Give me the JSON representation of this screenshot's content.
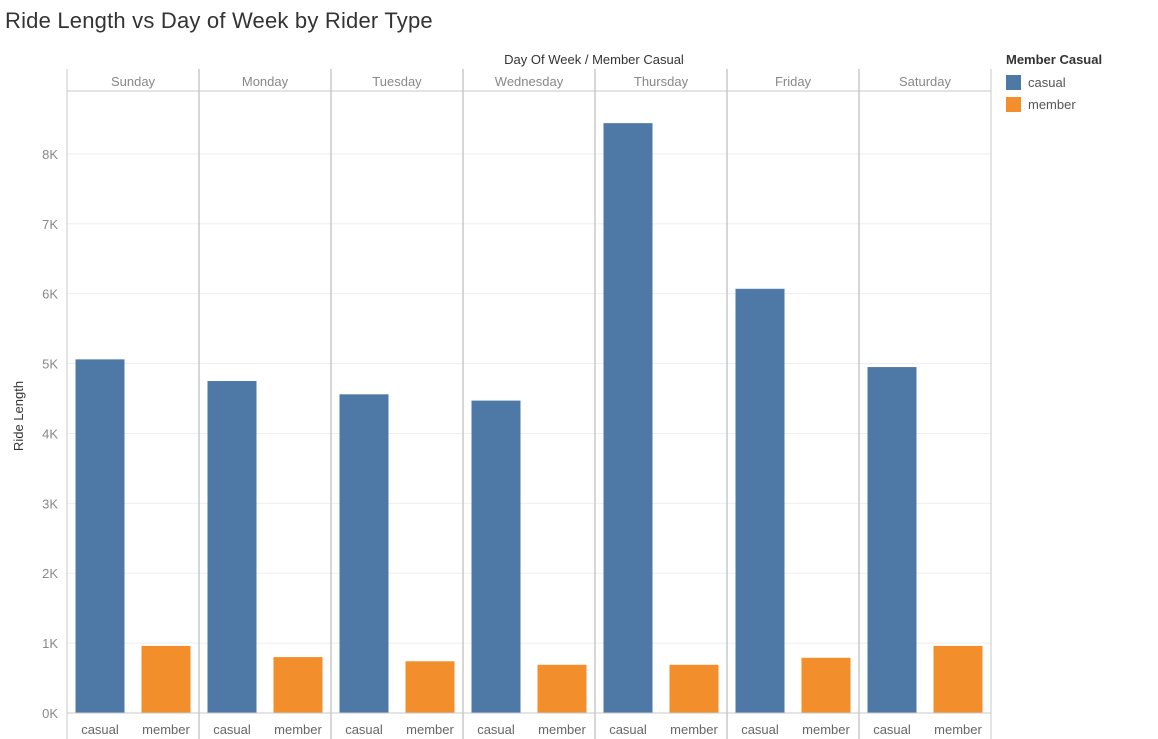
{
  "title": "Ride Length vs Day of Week by Rider Type",
  "header_label": "Day Of Week  /  Member Casual",
  "colors": {
    "casual": "#4e79a7",
    "member": "#f28e2b",
    "gridline": "#eeeeee",
    "divider": "#c8c8c8",
    "text": "#888888"
  },
  "legend": {
    "title": "Member Casual",
    "items": [
      {
        "label": "casual",
        "color": "#4e79a7"
      },
      {
        "label": "member",
        "color": "#f28e2b"
      }
    ]
  },
  "chart_data": {
    "type": "bar",
    "title": "Ride Length vs Day of Week by Rider Type",
    "xlabel": "Day Of Week  /  Member Casual",
    "ylabel": "Ride Length",
    "ylim": [
      0,
      8900
    ],
    "yticks": [
      0,
      1000,
      2000,
      3000,
      4000,
      5000,
      6000,
      7000,
      8000
    ],
    "ytick_labels": [
      "0K",
      "1K",
      "2K",
      "3K",
      "4K",
      "5K",
      "6K",
      "7K",
      "8K"
    ],
    "grid": true,
    "legend_position": "top-right",
    "categories": [
      "Sunday",
      "Monday",
      "Tuesday",
      "Wednesday",
      "Thursday",
      "Friday",
      "Saturday"
    ],
    "sub_categories": [
      "casual",
      "member"
    ],
    "series": [
      {
        "name": "casual",
        "values": [
          5060,
          4750,
          4560,
          4470,
          8440,
          6070,
          4950
        ]
      },
      {
        "name": "member",
        "values": [
          960,
          800,
          740,
          690,
          690,
          790,
          960
        ]
      }
    ]
  }
}
